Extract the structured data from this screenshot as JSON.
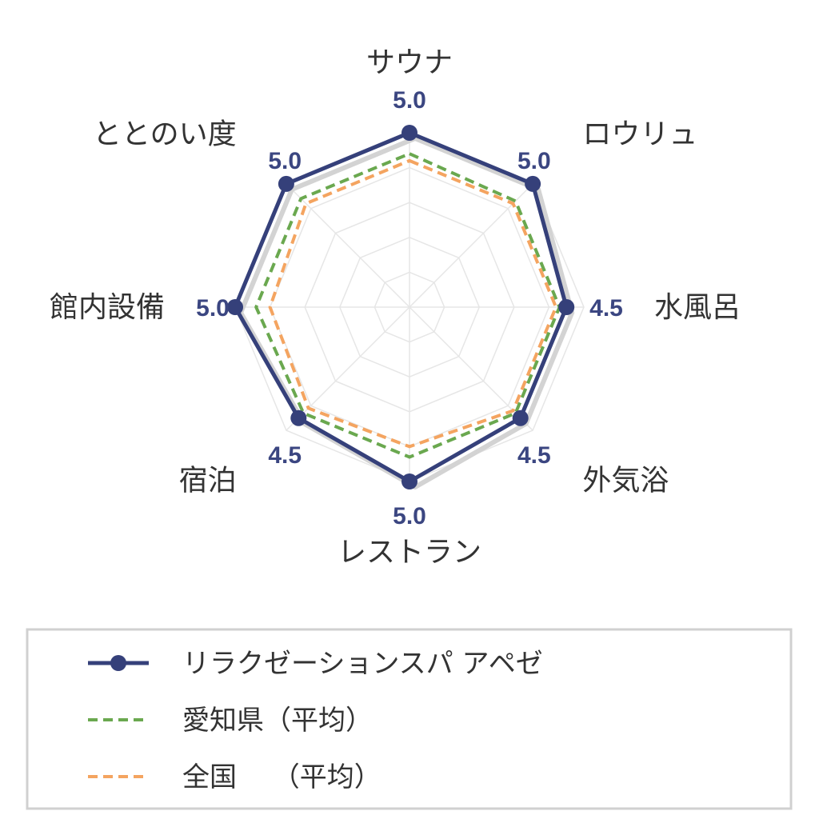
{
  "chart_data": {
    "type": "radar",
    "categories": [
      "サウナ",
      "ロウリュ",
      "水風呂",
      "外気浴",
      "レストラン",
      "宿泊",
      "館内設備",
      "ととのい度"
    ],
    "rmax": 5,
    "grid": true,
    "series": [
      {
        "name": "リラクゼーションスパ アペゼ",
        "values": [
          5.0,
          5.0,
          4.5,
          4.5,
          5.0,
          4.5,
          5.0,
          5.0
        ],
        "value_labels": [
          "5.0",
          "5.0",
          "4.5",
          "4.5",
          "5.0",
          "4.5",
          "5.0",
          "5.0"
        ],
        "color": "#35407a",
        "style": "solid",
        "markers": true
      },
      {
        "name": "愛知県（平均）",
        "values": [
          4.4,
          4.3,
          4.3,
          4.3,
          4.3,
          4.3,
          4.4,
          4.4
        ],
        "color": "#6aa84f",
        "style": "dashed",
        "markers": false
      },
      {
        "name": "全国　 （平均）",
        "values": [
          4.2,
          4.2,
          4.2,
          4.2,
          4.0,
          4.1,
          4.0,
          4.2
        ],
        "color": "#f4a460",
        "style": "dashed",
        "markers": false
      }
    ],
    "legend": {
      "position": "bottom",
      "entries": [
        "リラクゼーションスパ アペゼ",
        "愛知県（平均）",
        "全国　 （平均）"
      ]
    },
    "colors": {
      "grid": "#e6e6e6",
      "value_label": "#3b4681",
      "shadow": "#d3d3d3",
      "legend_border": "#d0d0d0"
    }
  }
}
